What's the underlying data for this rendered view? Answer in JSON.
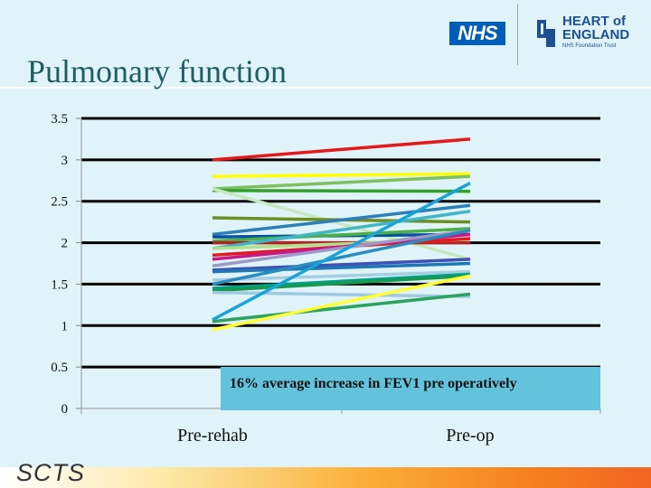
{
  "header": {
    "title": "Pulmonary function",
    "nhs_logo_text": "NHS",
    "trust_name_line1": "HEART of",
    "trust_name_line2": "ENGLAND",
    "trust_subtitle": "NHS Foundation Trust"
  },
  "footer": {
    "logo_text": "SCTS"
  },
  "annotation": "16% average increase in FEV1 pre operatively",
  "chart_data": {
    "type": "line",
    "title": "",
    "xlabel": "",
    "ylabel": "",
    "categories": [
      "Pre-rehab",
      "Pre-op"
    ],
    "ylim": [
      0,
      3.5
    ],
    "yticks": [
      "0",
      "0.5",
      "1",
      "1.5",
      "2",
      "2.5",
      "3",
      "3.5"
    ],
    "grid": true,
    "legend": "none",
    "series": [
      {
        "values": [
          3.0,
          3.25
        ],
        "color": "#e31a1c"
      },
      {
        "values": [
          2.8,
          2.83
        ],
        "color": "#ffff00"
      },
      {
        "values": [
          2.65,
          2.8
        ],
        "color": "#7fbf5f"
      },
      {
        "values": [
          2.63,
          2.62
        ],
        "color": "#33a02c"
      },
      {
        "values": [
          2.65,
          1.8
        ],
        "color": "#c7e9c0"
      },
      {
        "values": [
          2.3,
          2.25
        ],
        "color": "#6b8e23"
      },
      {
        "values": [
          2.1,
          2.45
        ],
        "color": "#2c7fb8"
      },
      {
        "values": [
          2.07,
          2.1
        ],
        "color": "#08519c"
      },
      {
        "values": [
          2.02,
          2.17
        ],
        "color": "#4daf4a"
      },
      {
        "values": [
          2.0,
          2.0
        ],
        "color": "#b22222"
      },
      {
        "values": [
          1.93,
          2.38
        ],
        "color": "#41b6c4"
      },
      {
        "values": [
          1.93,
          2.04
        ],
        "color": "#b2df8a"
      },
      {
        "values": [
          1.85,
          2.05
        ],
        "color": "#e31a1c"
      },
      {
        "values": [
          1.8,
          2.1
        ],
        "color": "#c51b8a"
      },
      {
        "values": [
          1.72,
          2.15
        ],
        "color": "#9e9ac8"
      },
      {
        "values": [
          1.67,
          1.8
        ],
        "color": "#3f51b5"
      },
      {
        "values": [
          1.65,
          1.75
        ],
        "color": "#1f78b4"
      },
      {
        "values": [
          1.55,
          1.65
        ],
        "color": "#a6cee3"
      },
      {
        "values": [
          1.5,
          2.15
        ],
        "color": "#2b8cbe"
      },
      {
        "values": [
          1.45,
          1.62
        ],
        "color": "#00a08a"
      },
      {
        "values": [
          1.42,
          1.6
        ],
        "color": "#1a9850"
      },
      {
        "values": [
          1.4,
          1.35
        ],
        "color": "#9ecae1"
      },
      {
        "values": [
          1.07,
          2.72
        ],
        "color": "#1aa3d9"
      },
      {
        "values": [
          1.05,
          1.38
        ],
        "color": "#2ca25f"
      },
      {
        "values": [
          0.95,
          1.6
        ],
        "color": "#ffff33"
      }
    ]
  }
}
